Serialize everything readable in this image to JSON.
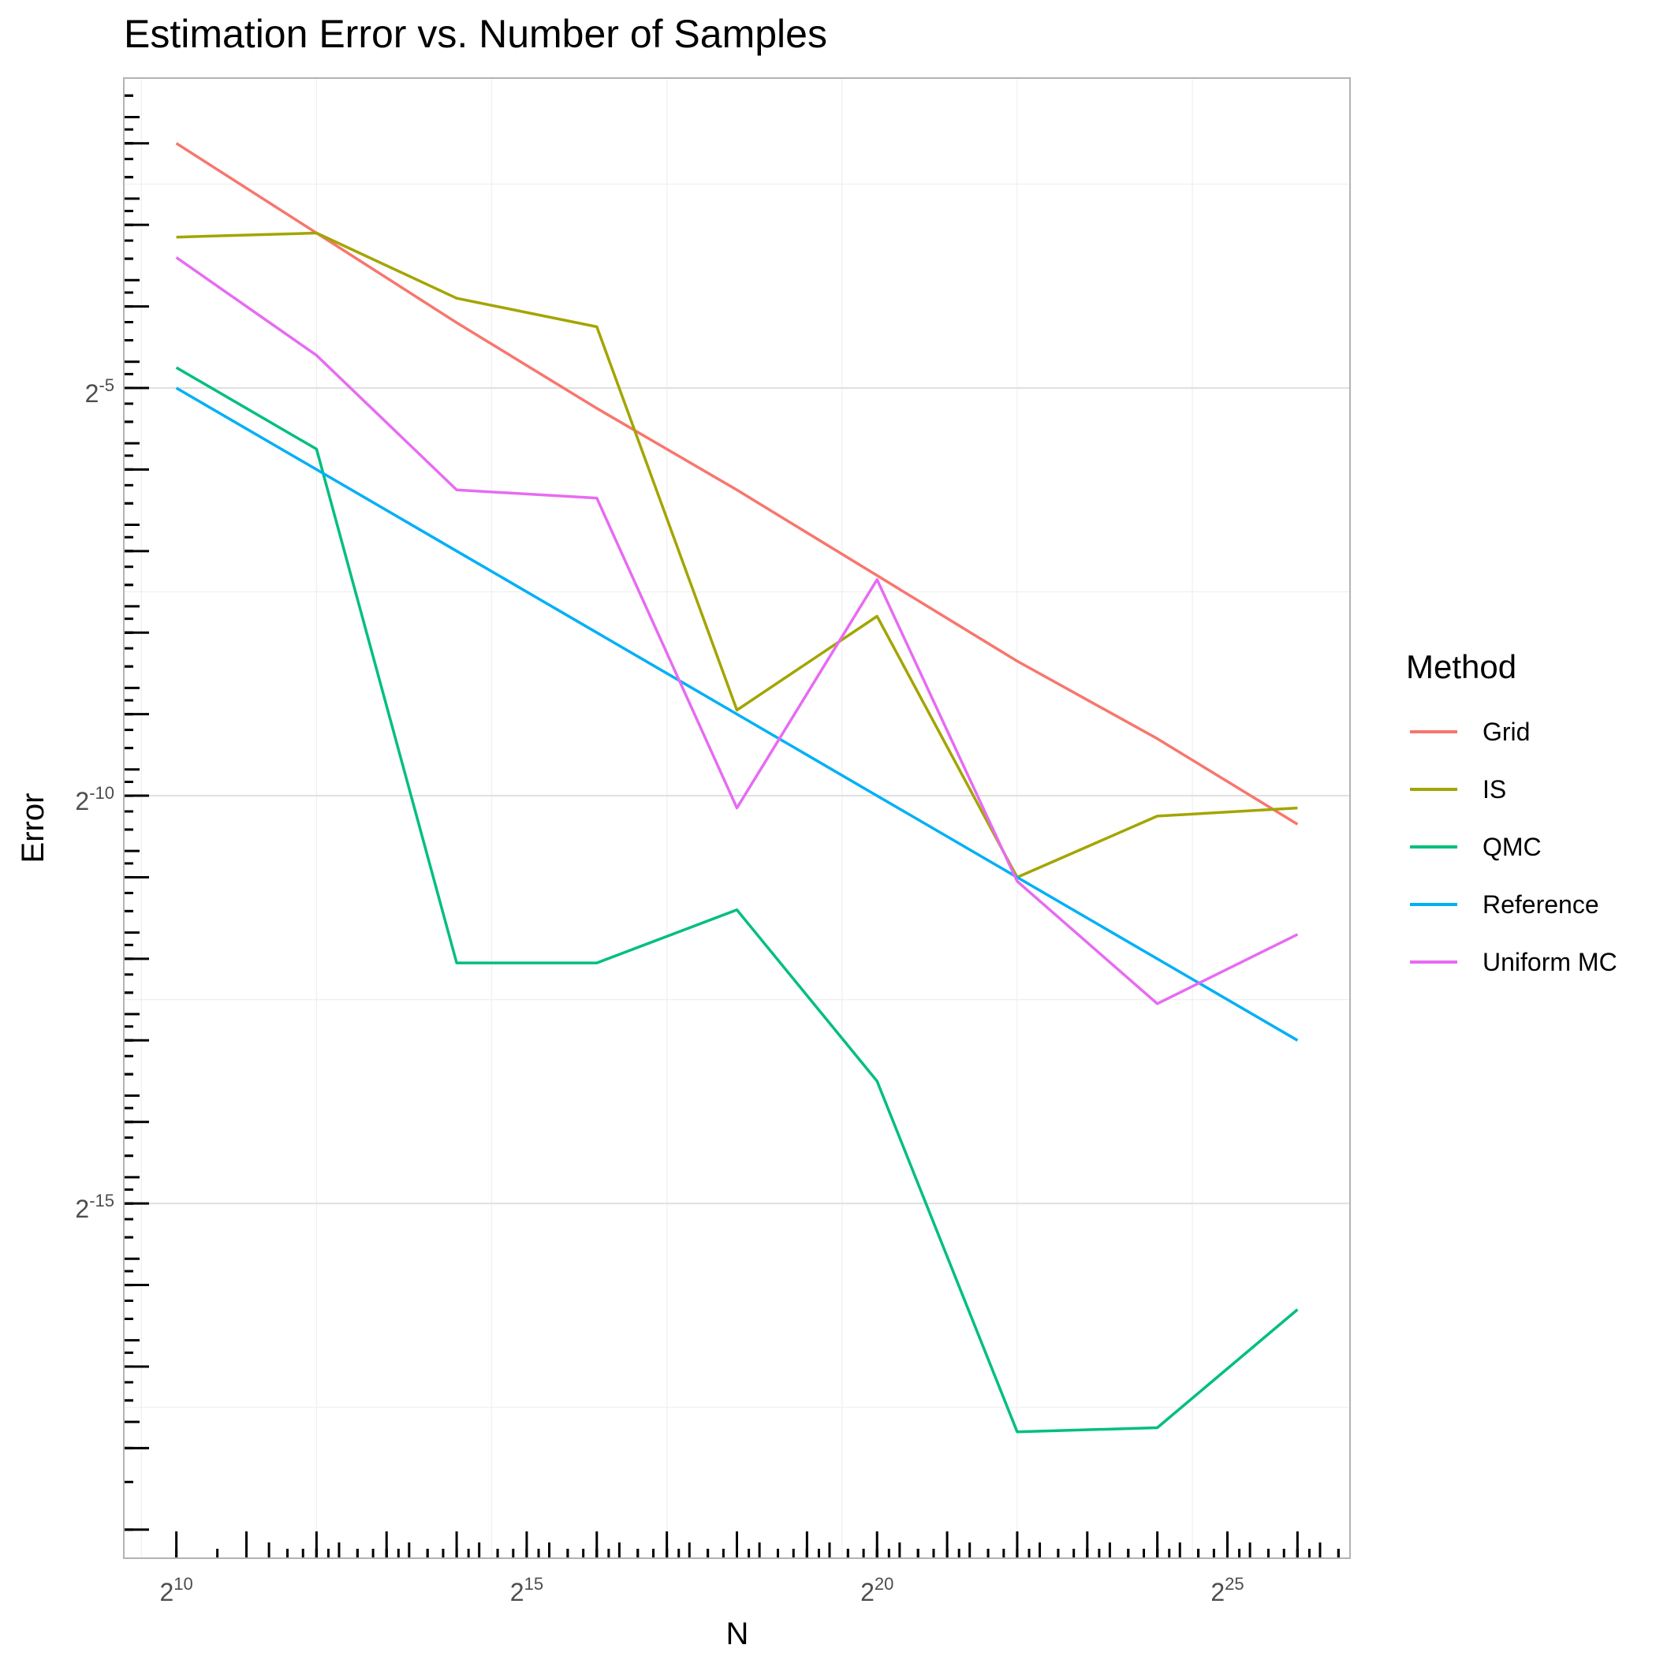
{
  "chart_data": {
    "type": "line",
    "title": "Estimation Error vs. Number of Samples",
    "xlabel": "N",
    "ylabel": "Error",
    "x_scale": "log2",
    "y_scale": "log2",
    "x_exponents": [
      10,
      12,
      14,
      16,
      18,
      20,
      22,
      24,
      26
    ],
    "xlim_exponents": [
      9.25,
      26.75
    ],
    "ylim_exponents": [
      -19.35,
      -1.2
    ],
    "x_ticks": [
      {
        "base": "2",
        "exp": "10",
        "value": 10
      },
      {
        "base": "2",
        "exp": "15",
        "value": 15
      },
      {
        "base": "2",
        "exp": "20",
        "value": 20
      },
      {
        "base": "2",
        "exp": "25",
        "value": 25
      }
    ],
    "y_ticks": [
      {
        "base": "2",
        "exp": "-5",
        "value": -5
      },
      {
        "base": "2",
        "exp": "-10",
        "value": -10
      },
      {
        "base": "2",
        "exp": "-15",
        "value": -15
      }
    ],
    "grid": true,
    "legend": {
      "title": "Method",
      "position": "right"
    },
    "series": [
      {
        "name": "Grid",
        "color": "#F8766D",
        "y_exponents": [
          -2.0,
          -3.1,
          -4.2,
          -5.25,
          -6.25,
          -7.3,
          -8.35,
          -9.3,
          -10.35
        ]
      },
      {
        "name": "IS",
        "color": "#A3A500",
        "y_exponents": [
          -3.15,
          -3.1,
          -3.9,
          -4.25,
          -8.95,
          -7.8,
          -11.0,
          -10.25,
          -10.15
        ]
      },
      {
        "name": "QMC",
        "color": "#00BF7D",
        "y_exponents": [
          -4.75,
          -5.75,
          -12.05,
          -12.05,
          -11.4,
          -13.5,
          -17.8,
          -17.75,
          -16.3
        ]
      },
      {
        "name": "Reference",
        "color": "#00B0F6",
        "y_exponents": [
          -5.0,
          -6.0,
          -7.0,
          -8.0,
          -9.0,
          -10.0,
          -11.0,
          -12.0,
          -13.0
        ]
      },
      {
        "name": "Uniform MC",
        "color": "#E76BF3",
        "y_exponents": [
          -3.4,
          -4.6,
          -6.25,
          -6.35,
          -10.15,
          -7.35,
          -11.05,
          -12.55,
          -11.7
        ]
      }
    ]
  }
}
